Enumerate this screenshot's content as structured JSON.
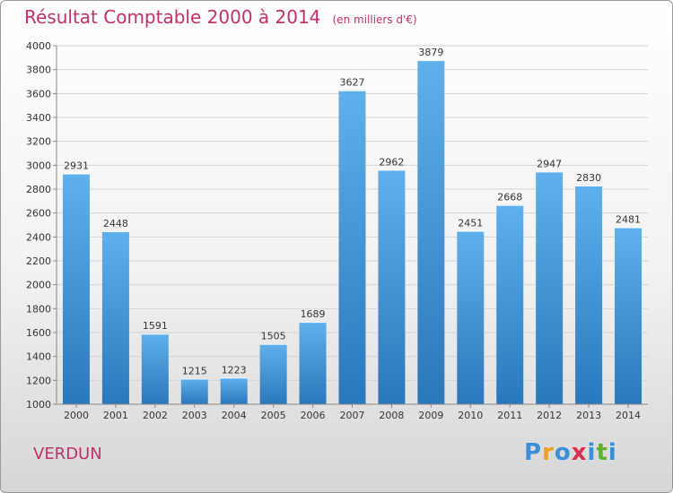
{
  "header": {
    "title": "Résultat Comptable 2000 à 2014",
    "subtitle": "(en milliers d'€)"
  },
  "footer": {
    "city": "VERDUN",
    "logo_letters": [
      "P",
      "r",
      "o",
      "x",
      "i",
      "t",
      "i"
    ],
    "logo_colors": [
      "#3a8fd8",
      "#f0a020",
      "#3a8fd8",
      "#d83050",
      "#3a8fd8",
      "#60b030",
      "#3a8fd8"
    ]
  },
  "colors": {
    "bar_top": "#5fb0ec",
    "bar_bottom": "#2a78bc",
    "title": "#c0306a"
  },
  "chart_data": {
    "type": "bar",
    "title": "Résultat Comptable 2000 à 2014",
    "categories": [
      "2000",
      "2001",
      "2002",
      "2003",
      "2004",
      "2005",
      "2006",
      "2007",
      "2008",
      "2009",
      "2010",
      "2011",
      "2012",
      "2013",
      "2014"
    ],
    "values": [
      2931,
      2448,
      1591,
      1215,
      1223,
      1505,
      1689,
      3627,
      2962,
      3879,
      2451,
      2668,
      2947,
      2830,
      2481
    ],
    "ylim": [
      1000,
      4000
    ],
    "yticks": [
      1000,
      1200,
      1400,
      1600,
      1800,
      2000,
      2200,
      2400,
      2600,
      2800,
      3000,
      3200,
      3400,
      3600,
      3800,
      4000
    ],
    "grid": true,
    "xlabel": "",
    "ylabel": ""
  }
}
